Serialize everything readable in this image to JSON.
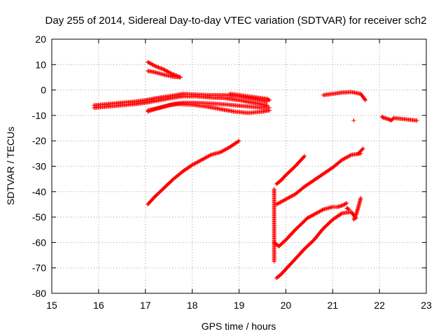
{
  "chart_data": {
    "type": "scatter",
    "title": "Day 255 of 2014, Sidereal Day-to-day VTEC variation (SDTVAR) for receiver sch2",
    "xlabel": "GPS time / hours",
    "ylabel": "SDTVAR / TECUs",
    "xlim": [
      15,
      23
    ],
    "ylim": [
      -80,
      20
    ],
    "xticks": [
      "15",
      "16",
      "17",
      "18",
      "19",
      "20",
      "21",
      "22",
      "23"
    ],
    "yticks": [
      "20",
      "10",
      "0",
      "-10",
      "-20",
      "-30",
      "-40",
      "-50",
      "-60",
      "-70",
      "-80"
    ],
    "grid": true,
    "marker": "+",
    "color": "#ff0000",
    "series": [
      {
        "x": [
          15.9,
          16.2,
          16.5,
          16.8,
          17.0,
          17.3,
          17.6,
          17.8,
          18.1,
          18.4,
          18.7,
          19.0,
          19.3,
          19.6
        ],
        "y": [
          -6.0,
          -5.5,
          -5.0,
          -4.5,
          -4.0,
          -3.0,
          -2.2,
          -1.5,
          -1.8,
          -2.0,
          -2.0,
          -2.5,
          -3.5,
          -4.5
        ]
      },
      {
        "x": [
          15.9,
          16.2,
          16.5,
          16.8,
          17.0,
          17.3,
          17.6,
          17.8,
          18.1,
          18.4,
          18.7,
          19.0,
          19.3,
          19.6
        ],
        "y": [
          -7.0,
          -6.5,
          -6.0,
          -5.5,
          -5.0,
          -4.0,
          -3.0,
          -2.5,
          -2.5,
          -3.0,
          -3.2,
          -4.0,
          -5.0,
          -6.0
        ]
      },
      {
        "x": [
          17.05,
          17.2,
          17.4,
          17.6,
          17.8,
          18.0,
          18.3,
          18.6,
          18.9,
          19.2,
          19.5,
          19.65
        ],
        "y": [
          -8.5,
          -7.5,
          -6.5,
          -5.5,
          -5.0,
          -5.0,
          -5.2,
          -5.5,
          -6.0,
          -6.5,
          -7.0,
          -7.0
        ]
      },
      {
        "x": [
          17.05,
          17.3,
          17.5,
          17.7,
          18.0,
          18.3,
          18.6,
          18.9,
          19.2,
          19.5,
          19.65
        ],
        "y": [
          -8.0,
          -7.0,
          -6.0,
          -5.5,
          -5.8,
          -6.5,
          -7.5,
          -8.5,
          -9.0,
          -8.5,
          -8.0
        ]
      },
      {
        "x": [
          18.8,
          19.0,
          19.2,
          19.4,
          19.6,
          19.65
        ],
        "y": [
          -1.5,
          -2.0,
          -2.5,
          -3.0,
          -3.5,
          -4.0
        ]
      },
      {
        "x": [
          17.05,
          17.2,
          17.4,
          17.55,
          17.75
        ],
        "y": [
          11.0,
          9.5,
          8.0,
          6.5,
          5.0
        ]
      },
      {
        "x": [
          17.05,
          17.2,
          17.4,
          17.6,
          17.75
        ],
        "y": [
          7.5,
          7.0,
          6.0,
          5.2,
          5.0
        ]
      },
      {
        "x": [
          17.05,
          17.2,
          17.4,
          17.6,
          17.8,
          18.0,
          18.2,
          18.4,
          18.6,
          18.8,
          19.0
        ],
        "y": [
          -45.0,
          -42.0,
          -38.5,
          -35.0,
          -32.0,
          -29.5,
          -27.5,
          -25.5,
          -24.5,
          -22.5,
          -20.0
        ]
      },
      {
        "x": [
          19.75,
          19.75,
          19.75
        ],
        "y": [
          -39.0,
          -41.0,
          -67.5
        ]
      },
      {
        "x": [
          19.75,
          19.85,
          20.0,
          20.2,
          20.4,
          20.45
        ],
        "y": [
          -60.0,
          -61.5,
          -59.0,
          -55.0,
          -51.5,
          -50.5
        ]
      },
      {
        "x": [
          19.8,
          19.9,
          20.0,
          20.2,
          20.4
        ],
        "y": [
          -37.0,
          -35.5,
          -33.5,
          -30.0,
          -26.0
        ]
      },
      {
        "x": [
          19.8,
          20.0,
          20.2,
          20.4,
          20.6,
          20.8,
          21.0,
          21.2,
          21.4,
          21.6
        ],
        "y": [
          -45.0,
          -43.0,
          -41.0,
          -38.0,
          -35.5,
          -33.0,
          -30.5,
          -27.5,
          -25.5,
          -25.0
        ]
      },
      {
        "x": [
          20.45,
          20.6,
          20.8,
          21.0,
          21.1,
          21.2,
          21.3
        ],
        "y": [
          -50.5,
          -49.0,
          -47.0,
          -46.0,
          -46.0,
          -45.5,
          -44.5
        ]
      },
      {
        "x": [
          19.8,
          19.9,
          20.0,
          20.2,
          20.4,
          20.6,
          20.8,
          21.0,
          21.2,
          21.4,
          21.5
        ],
        "y": [
          -74.0,
          -72.5,
          -70.5,
          -66.5,
          -62.5,
          -59.0,
          -54.5,
          -51.0,
          -48.5,
          -48.0,
          -50.5
        ]
      },
      {
        "x": [
          21.45,
          21.5,
          21.55,
          21.6
        ],
        "y": [
          -51.0,
          -49.0,
          -46.0,
          -42.5
        ]
      },
      {
        "x": [
          21.55,
          21.6,
          21.65
        ],
        "y": [
          -25.0,
          -24.0,
          -23.0
        ]
      },
      {
        "x": [
          20.8,
          21.0,
          21.2,
          21.4,
          21.6,
          21.7
        ],
        "y": [
          -2.0,
          -1.5,
          -1.0,
          -0.8,
          -1.5,
          -4.0
        ]
      },
      {
        "x": [
          21.45,
          22.05,
          22.1,
          22.2,
          22.25,
          22.3,
          22.8
        ],
        "y": [
          -12.0,
          -10.5,
          -11.0,
          -11.5,
          -12.0,
          -11.0,
          -12.0
        ]
      },
      {
        "x": [
          21.3,
          21.35
        ],
        "y": [
          -46.5,
          -47.0
        ]
      }
    ]
  }
}
